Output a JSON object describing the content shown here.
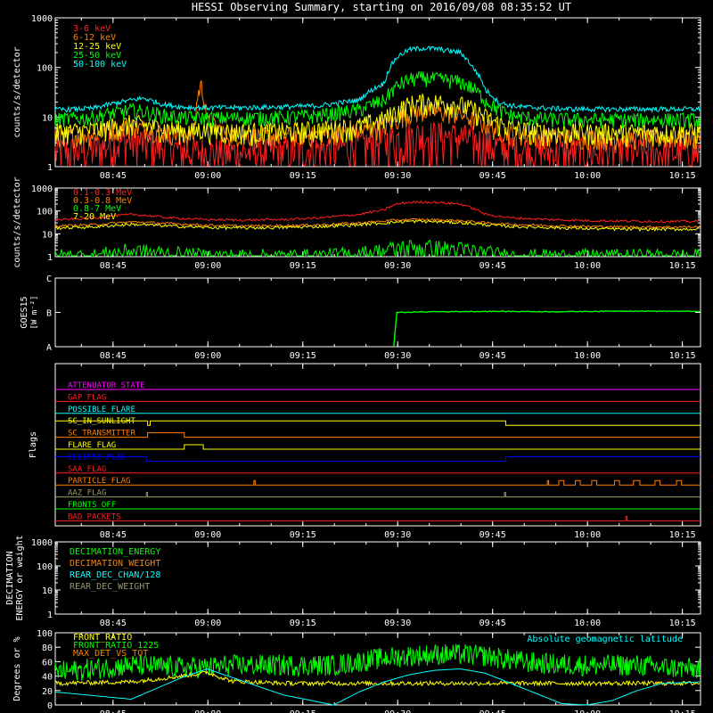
{
  "title": "HESSI Observing Summary, starting on 2016/09/08 08:35:52 UT",
  "time_ticks": [
    "08:45",
    "09:00",
    "09:15",
    "09:30",
    "09:45",
    "10:00",
    "10:15"
  ],
  "colors": {
    "red": "#ff2020",
    "orange": "#ff8000",
    "yellow": "#ffff00",
    "green": "#00ff00",
    "cyan": "#00ffff",
    "magenta": "#ff00ff",
    "blue": "#0000ff",
    "gray": "#999966",
    "white": "#ffffff",
    "violet": "#cc33ff"
  },
  "chart_data": [
    {
      "type": "line",
      "panel": "low-energy-lightcurves",
      "ylabel": "counts/s/detector",
      "yscale": "log",
      "ylim": [
        1,
        1000
      ],
      "yticks": [
        "1",
        "10",
        "100",
        "1000"
      ],
      "legend_position": "top-left",
      "x_unit": "minutes after 08:35:52 UT",
      "x": [
        0,
        6,
        12,
        14,
        17,
        20,
        22,
        23,
        24,
        27,
        30,
        36,
        42,
        48,
        52,
        54,
        56,
        58,
        60,
        64,
        66,
        68,
        70,
        72,
        74,
        76,
        78,
        82,
        88,
        96,
        102
      ],
      "series": [
        {
          "name": "3-6 keV",
          "color": "red",
          "values": [
            2.0,
            2.3,
            3.5,
            3.2,
            2.6,
            2.2,
            2.0,
            2.1,
            2.0,
            2.0,
            2.0,
            2.1,
            2.3,
            2.8,
            3.3,
            3.8,
            4.2,
            4.4,
            4.4,
            4.0,
            3.5,
            3.0,
            2.6,
            2.4,
            2.2,
            2.0,
            2.0,
            2.0,
            2.0,
            2.0,
            2.0
          ]
        },
        {
          "name": "6-12 keV",
          "color": "orange",
          "values": [
            4,
            4.5,
            6.5,
            6,
            5,
            4.4,
            4.2,
            45,
            8,
            4.5,
            4.3,
            4.2,
            4.5,
            5.2,
            6.5,
            9,
            12,
            13,
            13,
            11.5,
            9,
            7,
            5.5,
            4.8,
            4.4,
            4.1,
            4.0,
            3.9,
            3.8,
            3.8,
            3.8
          ]
        },
        {
          "name": "12-25 keV",
          "color": "yellow",
          "values": [
            5,
            5.5,
            7.5,
            7,
            6,
            5.4,
            5.2,
            6,
            5.5,
            5.2,
            5.1,
            5.2,
            5.6,
            6.5,
            9,
            13,
            18,
            20,
            20,
            18,
            14,
            10,
            7.5,
            6.2,
            5.5,
            5.2,
            5.0,
            5.0,
            5.0,
            5.0,
            5.0
          ]
        },
        {
          "name": "25-50 keV",
          "color": "green",
          "values": [
            9,
            10,
            14,
            13,
            11,
            10,
            9.6,
            9.8,
            9.7,
            9.7,
            9.8,
            10,
            11,
            14,
            22,
            42,
            58,
            62,
            60,
            52,
            38,
            22,
            14,
            11,
            10,
            9.5,
            9.2,
            9,
            9,
            9,
            9
          ]
        },
        {
          "name": "50-100 keV",
          "color": "cyan",
          "values": [
            14,
            15,
            22,
            24,
            18,
            16,
            15.5,
            15.5,
            15.5,
            15.5,
            15.5,
            16,
            17,
            22,
            48,
            160,
            230,
            245,
            240,
            200,
            100,
            35,
            20,
            17,
            16,
            15.5,
            15,
            14.5,
            14.5,
            14.5,
            14.5
          ]
        }
      ]
    },
    {
      "type": "line",
      "panel": "high-energy-lightcurves",
      "ylabel": "counts/s/detector",
      "yscale": "log",
      "ylim": [
        1,
        1000
      ],
      "yticks": [
        "1",
        "10",
        "100",
        "1000"
      ],
      "legend_position": "top-left",
      "x_unit": "minutes after 08:35:52 UT",
      "x": [
        0,
        6,
        12,
        14,
        18,
        24,
        30,
        36,
        42,
        48,
        52,
        54,
        56,
        58,
        60,
        64,
        66,
        68,
        72,
        78,
        84,
        90,
        96,
        102
      ],
      "series": [
        {
          "name": "0.1-0.3 MeV",
          "color": "red",
          "values": [
            40,
            48,
            70,
            65,
            50,
            42,
            40,
            42,
            50,
            70,
            110,
            200,
            240,
            245,
            240,
            200,
            130,
            70,
            50,
            42,
            38,
            36,
            35,
            35
          ]
        },
        {
          "name": "0.3-0.8 MeV",
          "color": "orange",
          "values": [
            22,
            25,
            33,
            32,
            28,
            24,
            22,
            23,
            25,
            30,
            36,
            40,
            42,
            42,
            41,
            38,
            34,
            30,
            26,
            23,
            21,
            20,
            20,
            20
          ]
        },
        {
          "name": "0.8-7 MeV",
          "color": "green",
          "values": [
            1,
            1,
            1.8,
            1.6,
            1.3,
            1,
            1,
            1,
            1,
            1.3,
            1.8,
            2.4,
            2.6,
            2.6,
            2.4,
            2.1,
            1.8,
            1.4,
            1,
            1,
            1,
            1,
            1,
            1
          ]
        },
        {
          "name": "7-20 MeV",
          "color": "yellow",
          "values": [
            18,
            20,
            26,
            25,
            22,
            19,
            18,
            19,
            21,
            25,
            30,
            33,
            35,
            35,
            34,
            31,
            28,
            25,
            21,
            19,
            17,
            16,
            16,
            16
          ]
        }
      ]
    },
    {
      "type": "line",
      "panel": "goes",
      "ylabel": "GOES15",
      "ylabel_unit": "[W m⁻²]",
      "yticks": [
        "A",
        "B",
        "C"
      ],
      "ylim": [
        0,
        2
      ],
      "note": "y values in class units: 0 = A, 1 = B, 2 = C",
      "x": [
        53.5,
        54,
        60,
        70,
        80,
        90,
        102
      ],
      "series": [
        {
          "name": "GOES",
          "color": "green",
          "values": [
            0,
            1.0,
            1.02,
            1.03,
            1.02,
            1.04,
            1.03
          ]
        }
      ]
    },
    {
      "type": "line",
      "panel": "flags",
      "ylabel": "Flags",
      "flags": [
        {
          "name": "ATTENUATOR_STATE",
          "color": "magenta"
        },
        {
          "name": "GAP_FLAG",
          "color": "red"
        },
        {
          "name": "POSSIBLE_FLARE",
          "color": "cyan"
        },
        {
          "name": "SC_IN_SUNLIGHT",
          "color": "yellow",
          "on": [
            [
              0,
              1
            ],
            [
              14.6,
              1
            ],
            [
              14.6,
              0
            ],
            [
              15.0,
              0
            ],
            [
              15.0,
              1
            ],
            [
              71.2,
              1
            ],
            [
              71.2,
              0
            ],
            [
              102,
              0
            ]
          ]
        },
        {
          "name": "SC_TRANSMITTER",
          "color": "orange",
          "on": [
            [
              0,
              0
            ],
            [
              14.6,
              0
            ],
            [
              14.6,
              1
            ],
            [
              20.4,
              1
            ],
            [
              20.4,
              0
            ],
            [
              102,
              0
            ]
          ]
        },
        {
          "name": "FLARE_FLAG",
          "color": "yellow",
          "on": [
            [
              0,
              0
            ],
            [
              20.4,
              0
            ],
            [
              20.4,
              1
            ],
            [
              23.4,
              1
            ],
            [
              23.4,
              0
            ],
            [
              102,
              0
            ]
          ]
        },
        {
          "name": "ECLIPSE_FLAG",
          "color": "blue",
          "on": [
            [
              0,
              1
            ],
            [
              14.4,
              1
            ],
            [
              14.4,
              0
            ],
            [
              71.2,
              0
            ],
            [
              71.2,
              1
            ],
            [
              102,
              1
            ]
          ]
        },
        {
          "name": "SAA_FLAG",
          "color": "red"
        },
        {
          "name": "PARTICLE_FLAG",
          "color": "orange",
          "on": [
            [
              0,
              0
            ],
            [
              31.4,
              0
            ],
            [
              31.4,
              1
            ],
            [
              31.6,
              1
            ],
            [
              31.6,
              0
            ],
            [
              77.8,
              0
            ],
            [
              77.8,
              1
            ],
            [
              78.0,
              1
            ],
            [
              78.0,
              0
            ],
            [
              79.6,
              0
            ],
            [
              79.6,
              1
            ],
            [
              80.4,
              1
            ],
            [
              80.4,
              0
            ],
            [
              82.2,
              0
            ],
            [
              82.2,
              1
            ],
            [
              83.0,
              1
            ],
            [
              83.0,
              0
            ],
            [
              84.8,
              0
            ],
            [
              84.8,
              1
            ],
            [
              85.6,
              1
            ],
            [
              85.6,
              0
            ],
            [
              88.4,
              0
            ],
            [
              88.4,
              1
            ],
            [
              89.2,
              1
            ],
            [
              89.2,
              0
            ],
            [
              91.4,
              0
            ],
            [
              91.4,
              1
            ],
            [
              92.4,
              1
            ],
            [
              92.4,
              0
            ],
            [
              94.8,
              0
            ],
            [
              94.8,
              1
            ],
            [
              95.6,
              1
            ],
            [
              95.6,
              0
            ],
            [
              98.2,
              0
            ],
            [
              98.2,
              1
            ],
            [
              99.0,
              1
            ],
            [
              99.0,
              0
            ],
            [
              102,
              0
            ]
          ]
        },
        {
          "name": "AAZ_FLAG",
          "color": "gray",
          "on": [
            [
              0,
              0
            ],
            [
              14.4,
              0
            ],
            [
              14.4,
              1
            ],
            [
              14.6,
              1
            ],
            [
              14.6,
              0
            ],
            [
              71.0,
              0
            ],
            [
              71.0,
              1
            ],
            [
              71.2,
              1
            ],
            [
              71.2,
              0
            ],
            [
              102,
              0
            ]
          ]
        },
        {
          "name": "FRONTS_OFF",
          "color": "green"
        },
        {
          "name": "BAD_PACKETS",
          "color": "red",
          "on": [
            [
              0,
              0
            ],
            [
              90.2,
              0
            ],
            [
              90.2,
              1
            ],
            [
              90.4,
              1
            ],
            [
              90.4,
              0
            ],
            [
              102,
              0
            ]
          ]
        }
      ]
    },
    {
      "type": "line",
      "panel": "decimation",
      "ylabel": "DECIMATION ENERGY or weight",
      "yscale": "log",
      "ylim": [
        1,
        1000
      ],
      "yticks": [
        "1",
        "10",
        "100",
        "1000"
      ],
      "legend_position": "top-left",
      "series": [
        {
          "name": "DECIMATION_ENERGY",
          "color": "green"
        },
        {
          "name": "DECIMATION_WEIGHT",
          "color": "orange"
        },
        {
          "name": "REAR_DEC_CHAN/128",
          "color": "cyan"
        },
        {
          "name": "REAR_DEC_WEIGHT",
          "color": "gray"
        }
      ]
    },
    {
      "type": "line",
      "panel": "ratios",
      "ylabel": "Degrees or %",
      "ylim": [
        0,
        100
      ],
      "yticks": [
        "0",
        "20",
        "40",
        "60",
        "80",
        "100"
      ],
      "legend_position": "top-left",
      "annotation": "Absolute geomagnetic latitude",
      "x": [
        0,
        12,
        20,
        24,
        28,
        36,
        44,
        48,
        52,
        56,
        60,
        64,
        68,
        72,
        76,
        80,
        84,
        88,
        92,
        96,
        102
      ],
      "series": [
        {
          "name": "FRONT_RATIO",
          "color": "yellow",
          "values": [
            30,
            32,
            40,
            45,
            33,
            30,
            30,
            30,
            30,
            30,
            30,
            30,
            30,
            30,
            30,
            30,
            30,
            30,
            30,
            30,
            30
          ]
        },
        {
          "name": "FRONT_RATIO_1225",
          "color": "green",
          "values": [
            45,
            55,
            52,
            52,
            55,
            55,
            55,
            60,
            65,
            68,
            70,
            70,
            68,
            62,
            58,
            56,
            55,
            55,
            55,
            52,
            50
          ]
        },
        {
          "name": "MAX_DET_VS_TOT",
          "color": "orange"
        },
        {
          "name": "Absolute geomagnetic latitude",
          "color": "cyan",
          "values": [
            18,
            8,
            38,
            50,
            38,
            14,
            0,
            18,
            32,
            42,
            48,
            50,
            44,
            30,
            16,
            2,
            0,
            6,
            20,
            30,
            32
          ]
        }
      ]
    }
  ]
}
